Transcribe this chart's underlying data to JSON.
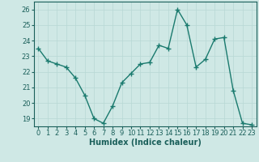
{
  "x": [
    0,
    1,
    2,
    3,
    4,
    5,
    6,
    7,
    8,
    9,
    10,
    11,
    12,
    13,
    14,
    15,
    16,
    17,
    18,
    19,
    20,
    21,
    22,
    23
  ],
  "y": [
    23.5,
    22.7,
    22.5,
    22.3,
    21.6,
    20.5,
    19.0,
    18.7,
    19.8,
    21.3,
    21.9,
    22.5,
    22.6,
    23.7,
    23.5,
    26.0,
    25.0,
    22.3,
    22.8,
    24.1,
    24.2,
    20.8,
    18.7,
    18.6
  ],
  "line_color": "#1a7a6e",
  "marker": "+",
  "marker_size": 4,
  "linewidth": 1.0,
  "bg_color": "#cfe8e5",
  "grid_color": "#b8d8d4",
  "tick_color": "#1a5f5a",
  "label_color": "#1a5f5a",
  "xlabel": "Humidex (Indice chaleur)",
  "ylim": [
    18.5,
    26.5
  ],
  "yticks": [
    19,
    20,
    21,
    22,
    23,
    24,
    25,
    26
  ],
  "xticks": [
    0,
    1,
    2,
    3,
    4,
    5,
    6,
    7,
    8,
    9,
    10,
    11,
    12,
    13,
    14,
    15,
    16,
    17,
    18,
    19,
    20,
    21,
    22,
    23
  ],
  "xlabel_fontsize": 7,
  "tick_fontsize": 6
}
